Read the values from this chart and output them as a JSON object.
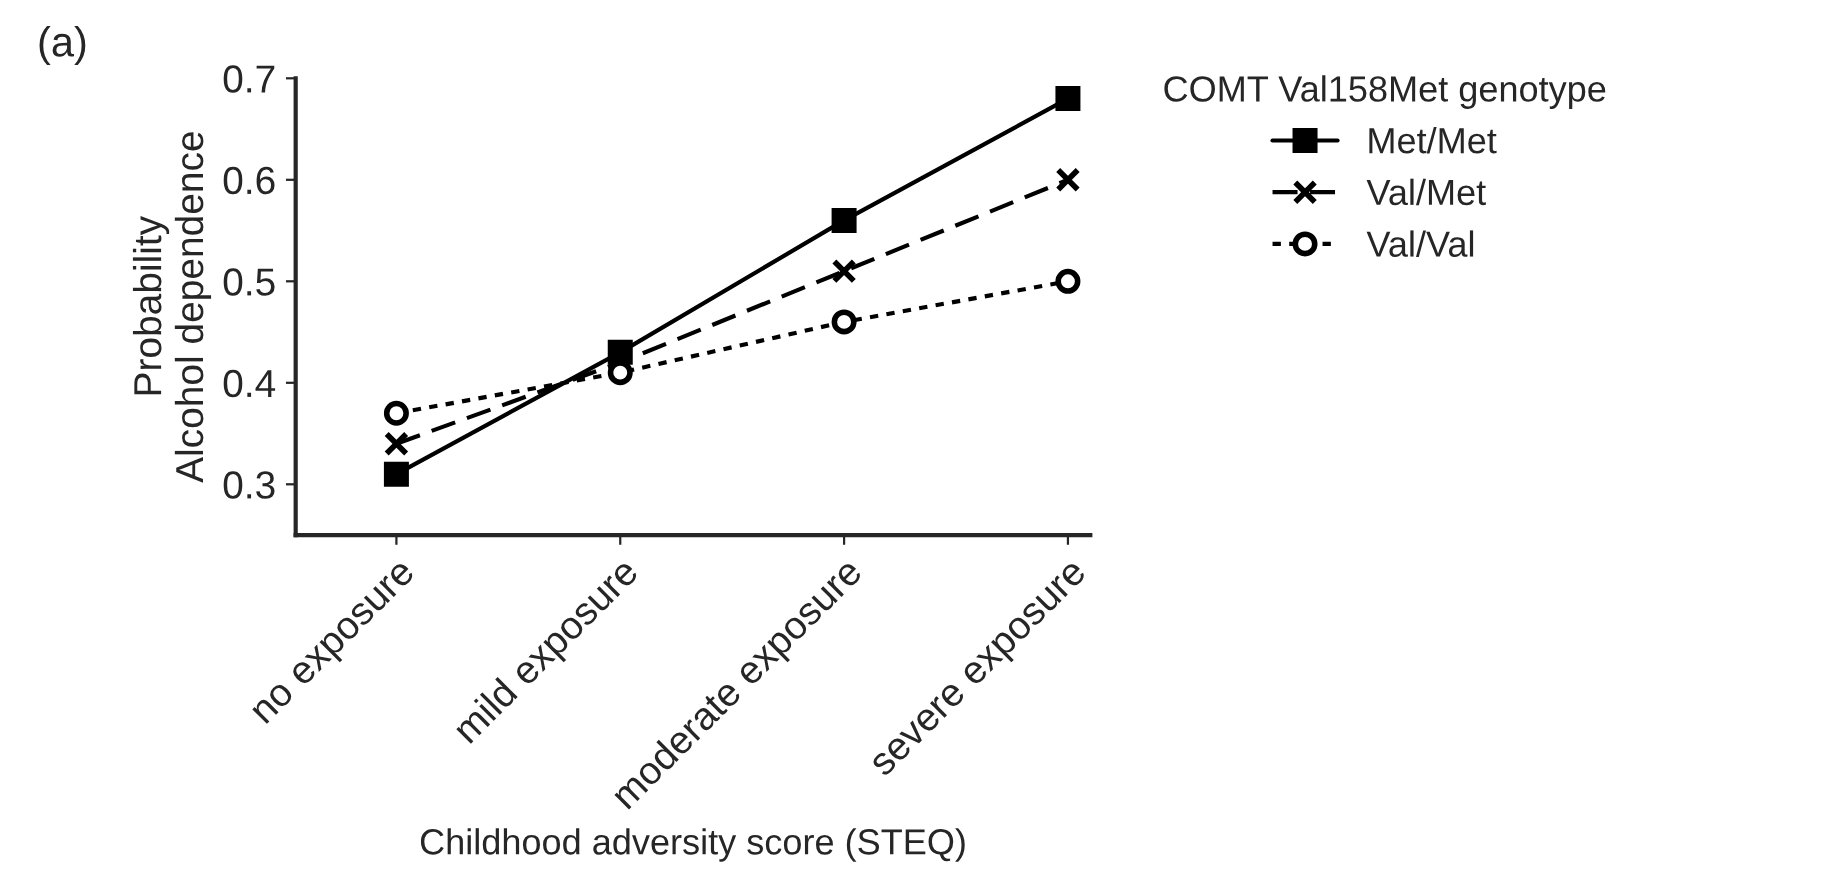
{
  "chart_data": {
    "type": "line",
    "title": "(a)",
    "xlabel": "Childhood adversity score (STEQ)",
    "ylabel": "Probability\nAlcohol dependence",
    "legend_title": "COMT Val158Met genotype",
    "categories": [
      "no exposure",
      "mild exposure",
      "moderate exposure",
      "severe exposure"
    ],
    "series": [
      {
        "name": "Met/Met",
        "color": "#000000",
        "marker": "square",
        "line_style": "solid",
        "values": [
          0.31,
          0.43,
          0.56,
          0.68
        ]
      },
      {
        "name": "Val/Met",
        "color": "#000000",
        "marker": "cross",
        "line_style": "dashed",
        "values": [
          0.34,
          0.42,
          0.51,
          0.6
        ]
      },
      {
        "name": "Val/Val",
        "color": "#000000",
        "marker": "circle",
        "line_style": "dotted",
        "values": [
          0.37,
          0.41,
          0.46,
          0.5
        ]
      }
    ],
    "ylim": [
      0.25,
      0.7
    ],
    "yticks": [
      0.3,
      0.4,
      0.5,
      0.6,
      0.7
    ],
    "grid": false,
    "legend": "right"
  }
}
